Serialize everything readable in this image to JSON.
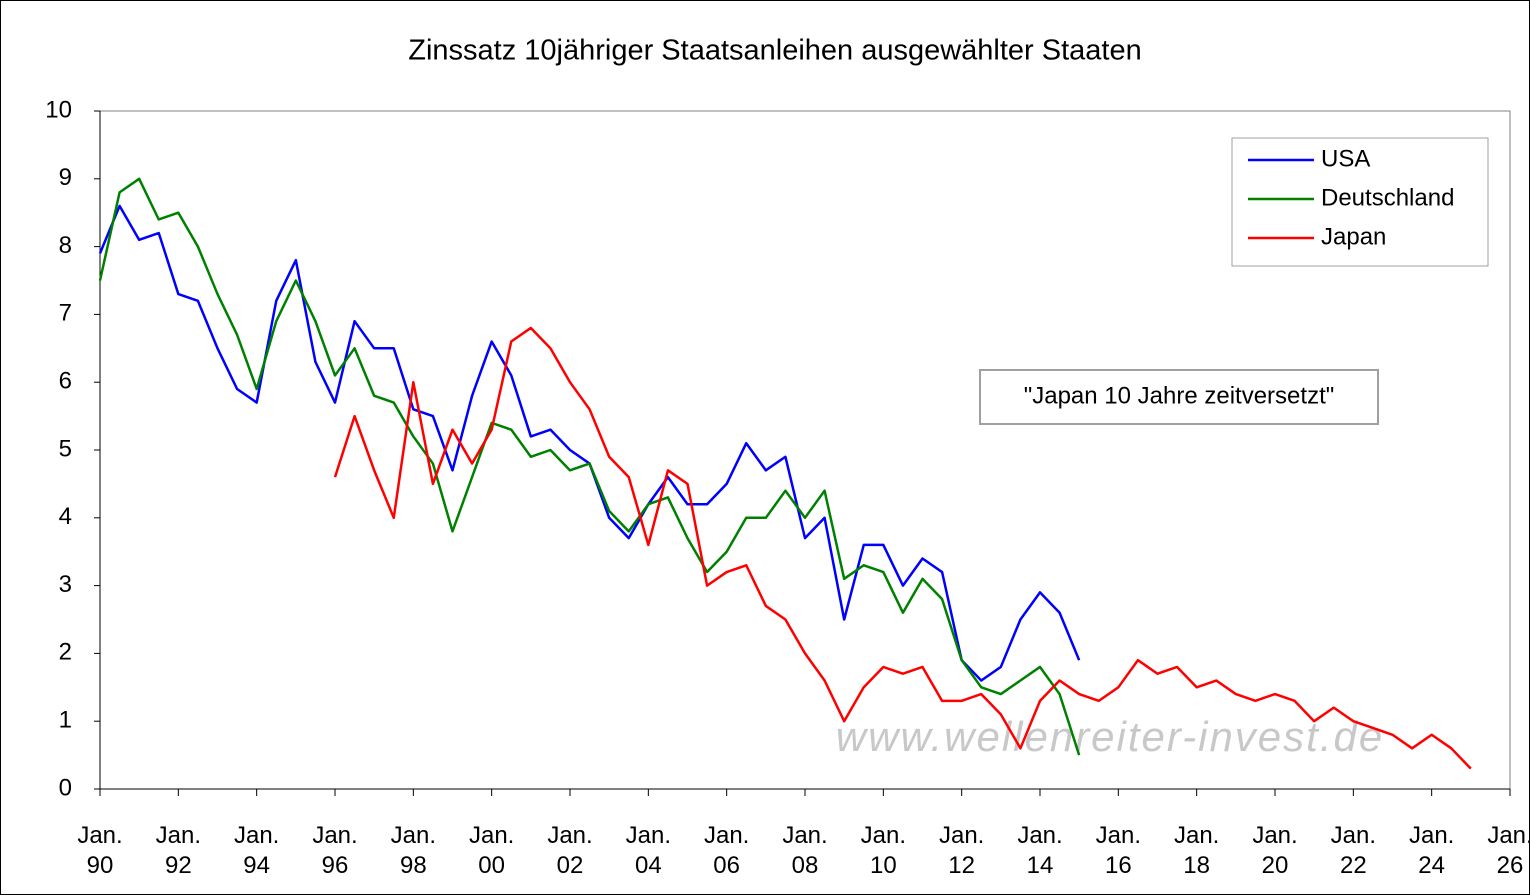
{
  "chart_data": {
    "type": "line",
    "title": "Zinssatz 10jähriger Staatsanleihen ausgewählter Staaten",
    "annotation": "\"Japan 10 Jahre zeitversetzt\"",
    "watermark": "www.wellenreiter-invest.de",
    "x": [
      1990,
      1990.5,
      1991,
      1991.5,
      1992,
      1992.5,
      1993,
      1993.5,
      1994,
      1994.5,
      1995,
      1995.5,
      1996,
      1996.5,
      1997,
      1997.5,
      1998,
      1998.5,
      1999,
      1999.5,
      2000,
      2000.5,
      2001,
      2001.5,
      2002,
      2002.5,
      2003,
      2003.5,
      2004,
      2004.5,
      2005,
      2005.5,
      2006,
      2006.5,
      2007,
      2007.5,
      2008,
      2008.5,
      2009,
      2009.5,
      2010,
      2010.5,
      2011,
      2011.5,
      2012,
      2012.5,
      2013,
      2013.5,
      2014,
      2014.5,
      2015,
      2015.5,
      2016,
      2016.5,
      2017,
      2017.5,
      2018,
      2018.5,
      2019,
      2019.5,
      2020,
      2020.5,
      2021,
      2021.5,
      2022,
      2022.5,
      2023,
      2023.5,
      2024,
      2024.5,
      2025
    ],
    "series": [
      {
        "name": "USA",
        "color": "#0000ff",
        "values": [
          7.9,
          8.6,
          8.1,
          8.2,
          7.3,
          7.2,
          6.5,
          5.9,
          5.7,
          7.2,
          7.8,
          6.3,
          5.7,
          6.9,
          6.5,
          6.5,
          5.6,
          5.5,
          4.7,
          5.8,
          6.6,
          6.1,
          5.2,
          5.3,
          5.0,
          4.8,
          4.0,
          3.7,
          4.2,
          4.6,
          4.2,
          4.2,
          4.5,
          5.1,
          4.7,
          4.9,
          3.7,
          4.0,
          2.5,
          3.6,
          3.6,
          3.0,
          3.4,
          3.2,
          1.9,
          1.6,
          1.8,
          2.5,
          2.9,
          2.6,
          1.9,
          null,
          null,
          null,
          null,
          null,
          null,
          null,
          null,
          null,
          null,
          null,
          null,
          null,
          null,
          null,
          null,
          null,
          null,
          null,
          null
        ]
      },
      {
        "name": "Deutschland",
        "color": "#008000",
        "values": [
          7.5,
          8.8,
          9.0,
          8.4,
          8.5,
          8.0,
          7.3,
          6.7,
          5.9,
          6.9,
          7.5,
          6.9,
          6.1,
          6.5,
          5.8,
          5.7,
          5.2,
          4.8,
          3.8,
          4.6,
          5.4,
          5.3,
          4.9,
          5.0,
          4.7,
          4.8,
          4.1,
          3.8,
          4.2,
          4.3,
          3.7,
          3.2,
          3.5,
          4.0,
          4.0,
          4.4,
          4.0,
          4.4,
          3.1,
          3.3,
          3.2,
          2.6,
          3.1,
          2.8,
          1.9,
          1.5,
          1.4,
          1.6,
          1.8,
          1.4,
          0.5,
          null,
          null,
          null,
          null,
          null,
          null,
          null,
          null,
          null,
          null,
          null,
          null,
          null,
          null,
          null,
          null,
          null,
          null,
          null,
          null
        ]
      },
      {
        "name": "Japan",
        "color": "#ff0000",
        "values": [
          null,
          null,
          null,
          null,
          null,
          null,
          null,
          null,
          null,
          null,
          null,
          null,
          4.6,
          5.5,
          4.7,
          4.0,
          6.0,
          4.5,
          5.3,
          4.8,
          5.3,
          6.6,
          6.8,
          6.5,
          6.0,
          5.6,
          4.9,
          4.6,
          3.6,
          4.7,
          4.5,
          3.0,
          3.2,
          3.3,
          2.7,
          2.5,
          2.0,
          1.6,
          1.0,
          1.5,
          1.8,
          1.7,
          1.8,
          1.3,
          1.3,
          1.4,
          1.1,
          0.6,
          1.3,
          1.6,
          1.4,
          1.3,
          1.5,
          1.9,
          1.7,
          1.8,
          1.5,
          1.6,
          1.4,
          1.3,
          1.4,
          1.3,
          1.0,
          1.2,
          1.0,
          0.9,
          0.8,
          0.6,
          0.8,
          0.6,
          0.3
        ]
      }
    ],
    "xlim": [
      1990,
      2026
    ],
    "xticks": [
      {
        "value": 1990,
        "label": "Jan. 90"
      },
      {
        "value": 1992,
        "label": "Jan. 92"
      },
      {
        "value": 1994,
        "label": "Jan. 94"
      },
      {
        "value": 1996,
        "label": "Jan. 96"
      },
      {
        "value": 1998,
        "label": "Jan. 98"
      },
      {
        "value": 2000,
        "label": "Jan. 00"
      },
      {
        "value": 2002,
        "label": "Jan. 02"
      },
      {
        "value": 2004,
        "label": "Jan. 04"
      },
      {
        "value": 2006,
        "label": "Jan. 06"
      },
      {
        "value": 2008,
        "label": "Jan. 08"
      },
      {
        "value": 2010,
        "label": "Jan. 10"
      },
      {
        "value": 2012,
        "label": "Jan. 12"
      },
      {
        "value": 2014,
        "label": "Jan. 14"
      },
      {
        "value": 2016,
        "label": "Jan. 16"
      },
      {
        "value": 2018,
        "label": "Jan. 18"
      },
      {
        "value": 2020,
        "label": "Jan. 20"
      },
      {
        "value": 2022,
        "label": "Jan. 22"
      },
      {
        "value": 2024,
        "label": "Jan. 24"
      },
      {
        "value": 2026,
        "label": "Jan. 26"
      }
    ],
    "ylim": [
      0,
      10
    ],
    "yticks": [
      0,
      1,
      2,
      3,
      4,
      5,
      6,
      7,
      8,
      9,
      10
    ],
    "legend": "top-right"
  }
}
